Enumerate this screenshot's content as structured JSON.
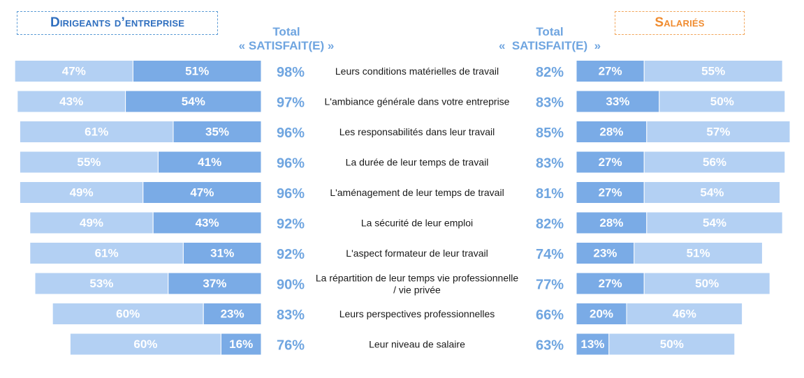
{
  "left_title": "Dirigeants d’entreprise",
  "right_title": "Salariés",
  "total_header_left": {
    "line1": "Total",
    "line2": "« SATISFAIT(E) »"
  },
  "total_header_right": {
    "line1": "Total",
    "line2": "«  SATISFAIT(E)  »"
  },
  "colors": {
    "light_bar": "#B3D0F3",
    "dark_bar": "#7AABE6",
    "total_text": "#6FA5E0",
    "label_text": "#1a1a1a",
    "bar_value_text": "#ffffff"
  },
  "chart_data": {
    "type": "bar",
    "orientation": "horizontal-stacked-butterfly",
    "categories": [
      "Leurs conditions matérielles de travail",
      "L'ambiance générale dans votre entreprise",
      "Les responsabilités dans leur travail",
      "La durée de leur temps de travail",
      "L'aménagement de leur temps de travail",
      "La sécurité de leur emploi",
      "L'aspect formateur de leur travail",
      "La répartition de leur temps vie professionnelle / vie privée",
      "Leurs perspectives professionnelles",
      "Leur niveau de salaire"
    ],
    "dirigeants": {
      "light_values": [
        47,
        43,
        61,
        55,
        49,
        49,
        61,
        53,
        60,
        60
      ],
      "dark_values": [
        51,
        54,
        35,
        41,
        47,
        43,
        31,
        37,
        23,
        16
      ],
      "totals": [
        "98%",
        "97%",
        "96%",
        "96%",
        "96%",
        "92%",
        "92%",
        "90%",
        "83%",
        "76%"
      ]
    },
    "salaries": {
      "dark_values": [
        27,
        33,
        28,
        27,
        27,
        28,
        23,
        27,
        20,
        13
      ],
      "light_values": [
        55,
        50,
        57,
        56,
        54,
        54,
        51,
        50,
        46,
        50
      ],
      "totals": [
        "82%",
        "83%",
        "85%",
        "83%",
        "81%",
        "82%",
        "74%",
        "77%",
        "66%",
        "63%"
      ]
    }
  }
}
